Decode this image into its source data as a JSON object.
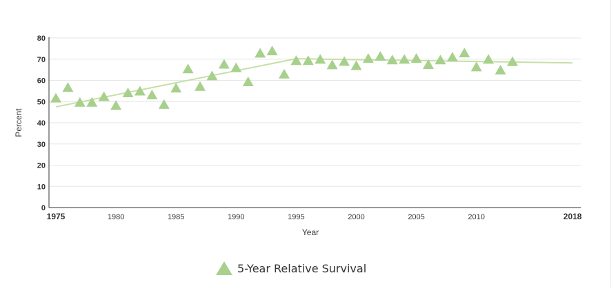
{
  "chart_data": {
    "type": "scatter",
    "xlabel": "Year",
    "ylabel": "Percent",
    "xlim": [
      1975,
      2018
    ],
    "ylim": [
      0,
      80
    ],
    "y_ticks": [
      0,
      10,
      20,
      30,
      40,
      50,
      60,
      70,
      80
    ],
    "x_ticks": [
      1975,
      1980,
      1985,
      1990,
      1995,
      2000,
      2005,
      2010,
      2018
    ],
    "x_ticks_bold": [
      1975,
      2018
    ],
    "grid": true,
    "legend_position": "bottom-center",
    "series": [
      {
        "name": "5-Year Relative Survival",
        "marker": "triangle",
        "color": "#a8d08d",
        "x": [
          1975,
          1976,
          1977,
          1978,
          1979,
          1980,
          1981,
          1982,
          1983,
          1984,
          1985,
          1986,
          1987,
          1988,
          1989,
          1990,
          1991,
          1992,
          1993,
          1994,
          1995,
          1996,
          1997,
          1998,
          1999,
          2000,
          2001,
          2002,
          2003,
          2004,
          2005,
          2006,
          2007,
          2008,
          2009,
          2010,
          2011,
          2012,
          2013
        ],
        "y": [
          51.5,
          56.5,
          49.5,
          49.5,
          52.2,
          48,
          54,
          54.8,
          53,
          48.5,
          56.2,
          65.3,
          57,
          62,
          67.5,
          65.8,
          59.2,
          72.7,
          73.8,
          62.8,
          69.2,
          69.2,
          69.8,
          67.2,
          68.8,
          66.8,
          70.2,
          71.2,
          69.5,
          69.8,
          70.2,
          67.3,
          69.5,
          70.8,
          72.8,
          66.2,
          69.8,
          64.7,
          68.7
        ]
      }
    ],
    "trend": {
      "name": "trend",
      "color": "#c5e0a5",
      "x": [
        1975,
        1995,
        2018
      ],
      "y": [
        47.5,
        70.2,
        68.2
      ]
    }
  },
  "legend": {
    "label": "5-Year Relative Survival"
  },
  "colors": {
    "marker": "#a8d08d",
    "trend": "#c5e0a5",
    "grid": "#e6e6e6",
    "axis": "#333333"
  }
}
